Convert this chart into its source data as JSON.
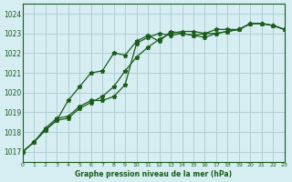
{
  "title": "Graphe pression niveau de la mer (hPa)",
  "background_color": "#d6eef2",
  "grid_color": "#b0cdd4",
  "line_color": "#1a5c1a",
  "xlim": [
    0,
    23
  ],
  "ylim": [
    1016.5,
    1024.5
  ],
  "yticks": [
    1017,
    1018,
    1019,
    1020,
    1021,
    1022,
    1023,
    1024
  ],
  "xticks": [
    0,
    1,
    2,
    3,
    4,
    5,
    6,
    7,
    8,
    9,
    10,
    11,
    12,
    13,
    14,
    15,
    16,
    17,
    18,
    19,
    20,
    21,
    22,
    23
  ],
  "series1_x": [
    0,
    1,
    2,
    3,
    4,
    5,
    6,
    7,
    8,
    9,
    10,
    11,
    12,
    13,
    14,
    15,
    16,
    17,
    18,
    19,
    20,
    21,
    22,
    23
  ],
  "series1_y": [
    1017.0,
    1017.5,
    1018.1,
    1018.6,
    1018.7,
    1019.2,
    1019.5,
    1019.8,
    1020.3,
    1021.1,
    1021.8,
    1022.3,
    1022.7,
    1023.0,
    1023.1,
    1023.1,
    1023.0,
    1023.0,
    1023.1,
    1023.2,
    1023.5,
    1023.5,
    1023.4,
    1023.2
  ],
  "series2_x": [
    0,
    1,
    2,
    3,
    4,
    5,
    6,
    7,
    8,
    9,
    10,
    11,
    12,
    13,
    14,
    15,
    16,
    17,
    18,
    19,
    20,
    21,
    22,
    23
  ],
  "series2_y": [
    1017.0,
    1017.5,
    1018.2,
    1018.7,
    1018.8,
    1019.3,
    1019.6,
    1019.6,
    1019.8,
    1020.4,
    1022.5,
    1022.8,
    1023.0,
    1022.9,
    1023.0,
    1022.9,
    1022.8,
    1023.0,
    1023.1,
    1023.2,
    1023.5,
    1023.5,
    1023.4,
    1023.2
  ],
  "series3_x": [
    0,
    1,
    2,
    3,
    4,
    5,
    6,
    7,
    8,
    9,
    10,
    11,
    12,
    13,
    14,
    15,
    16,
    17,
    18,
    19,
    20,
    21,
    22,
    23
  ],
  "series3_y": [
    1017.0,
    1017.5,
    1018.1,
    1018.6,
    1019.6,
    1020.3,
    1021.0,
    1021.1,
    1022.0,
    1021.9,
    1022.6,
    1022.9,
    1022.6,
    1023.1,
    1023.0,
    1022.9,
    1023.0,
    1023.2,
    1023.2,
    1023.2,
    1023.5,
    1023.5,
    1023.4,
    1023.2
  ]
}
